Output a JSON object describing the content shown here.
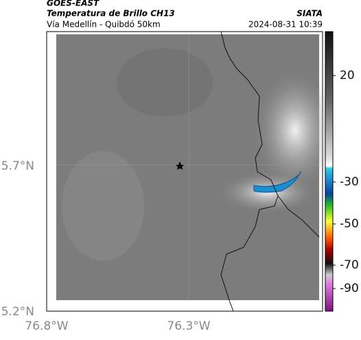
{
  "header": {
    "product": "GOES-EAST",
    "title": "Temperatura de Brillo CH13",
    "brand": "SIATA",
    "route": "Vía Medellín - Quibdó 50km",
    "timestamp": "2024-08-31 10:39"
  },
  "map": {
    "lat_labels": [
      "5.7°N",
      "5.2°N"
    ],
    "lon_labels": [
      "76.8°W",
      "76.3°W"
    ]
  },
  "colorbar": {
    "ticks": [
      20,
      -30,
      -50,
      -70,
      -90
    ]
  }
}
